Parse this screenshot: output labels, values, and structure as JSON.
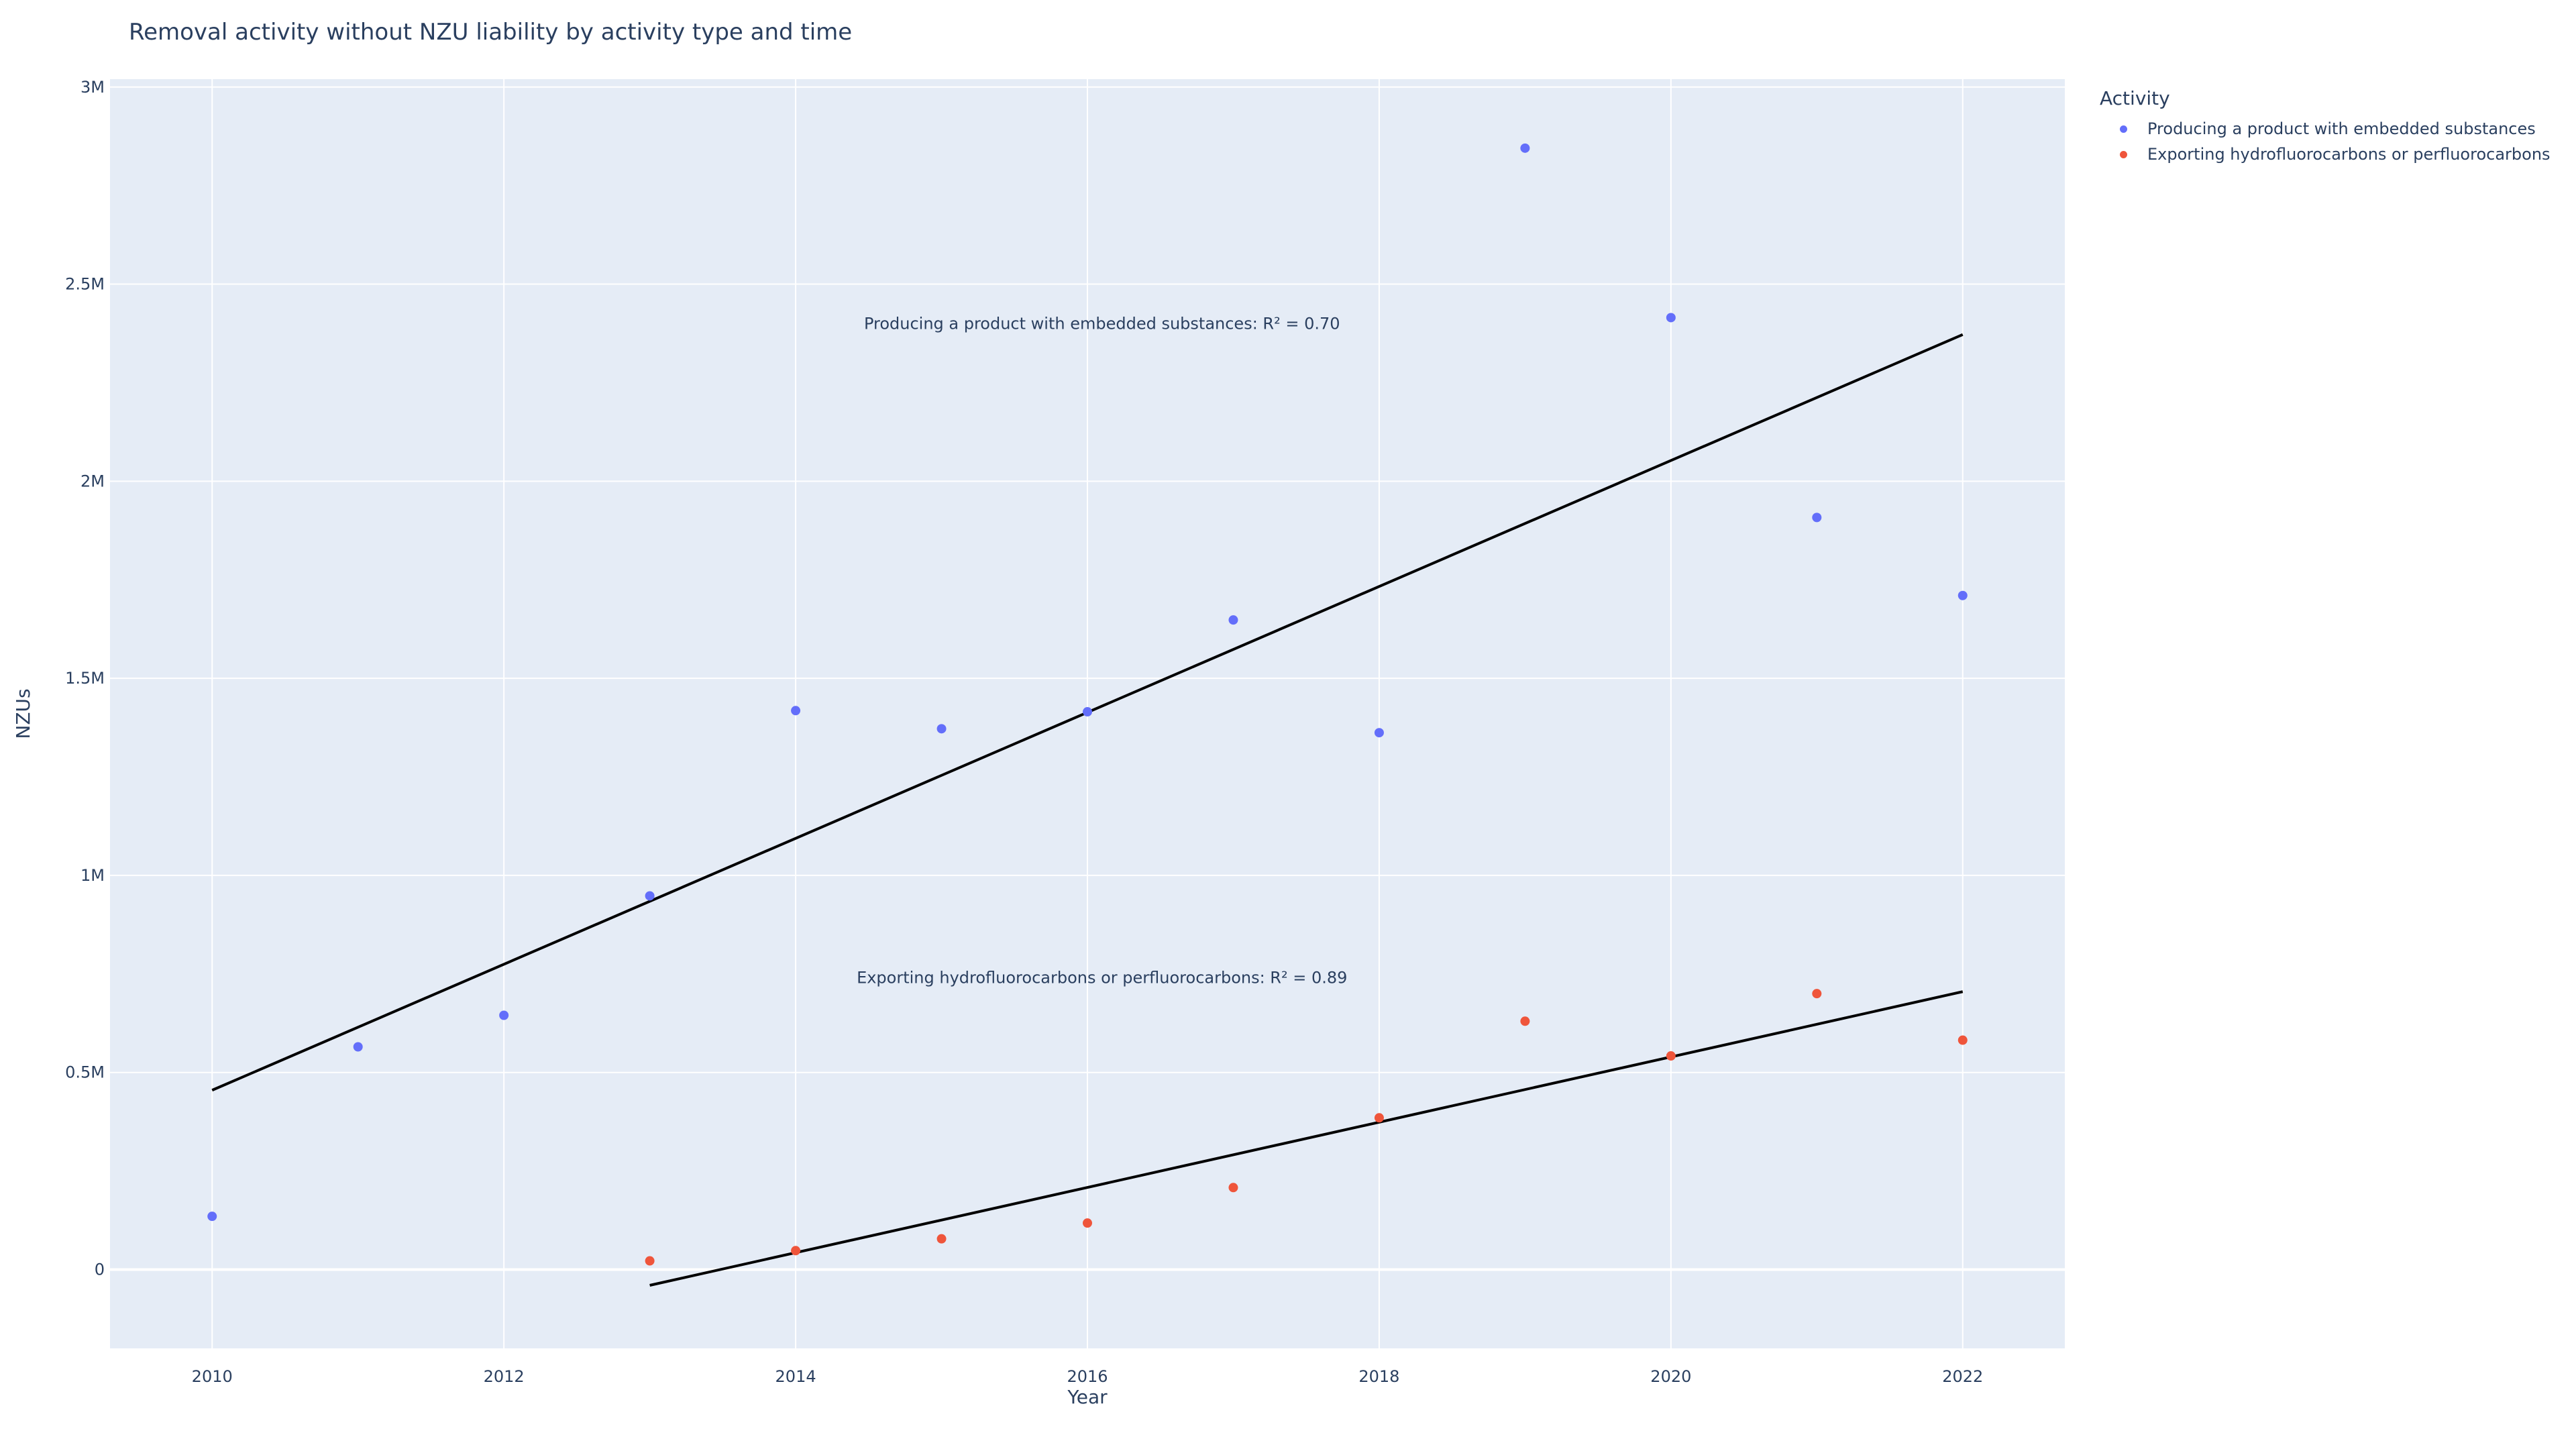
{
  "chart_data": {
    "type": "scatter",
    "title": "Removal activity without NZU liability by activity type and time",
    "xlabel": "Year",
    "ylabel": "NZUs",
    "xlim": [
      2009.3,
      2022.7
    ],
    "ylim": [
      -200000,
      3020000
    ],
    "xticks": [
      2010,
      2012,
      2014,
      2016,
      2018,
      2020,
      2022
    ],
    "xtick_labels": [
      "2010",
      "2012",
      "2014",
      "2016",
      "2018",
      "2020",
      "2022"
    ],
    "yticks": [
      0,
      500000,
      1000000,
      1500000,
      2000000,
      2500000,
      3000000
    ],
    "ytick_labels": [
      "0",
      "0.5M",
      "1M",
      "1.5M",
      "2M",
      "2.5M",
      "3M"
    ],
    "grid": true,
    "legend_title": "Activity",
    "legend_position": "right",
    "series": [
      {
        "name": "Producing a product with embedded substances",
        "color": "#636efa",
        "x": [
          2010,
          2011,
          2012,
          2013,
          2014,
          2015,
          2016,
          2017,
          2018,
          2019,
          2020,
          2021,
          2022
        ],
        "y": [
          135000,
          565000,
          645000,
          948000,
          1418000,
          1372000,
          1415000,
          1648000,
          1362000,
          2845000,
          2415000,
          1908000,
          1710000
        ],
        "trendline": {
          "x": [
            2010,
            2022
          ],
          "y": [
            455000,
            2372000
          ]
        },
        "annotation": {
          "text": "Producing a product with embedded substances: R² = 0.70",
          "x": 2016.1,
          "y": 2400000
        }
      },
      {
        "name": "Exporting hydrofluorocarbons or perfluorocarbons",
        "color": "#ef553b",
        "x": [
          2013,
          2014,
          2015,
          2016,
          2017,
          2018,
          2019,
          2020,
          2021,
          2022
        ],
        "y": [
          22000,
          48000,
          78000,
          118000,
          208000,
          385000,
          630000,
          542000,
          700000,
          582000
        ],
        "trendline": {
          "x": [
            2013,
            2022
          ],
          "y": [
            -40000,
            705000
          ]
        },
        "annotation": {
          "text": "Exporting hydrofluorocarbons or perfluorocarbons: R² = 0.89",
          "x": 2016.1,
          "y": 740000
        }
      }
    ]
  },
  "colors": {
    "plot_bg": "#e5ecf6",
    "grid": "#ffffff",
    "text": "#2a3f5f",
    "trendline": "#000000"
  }
}
